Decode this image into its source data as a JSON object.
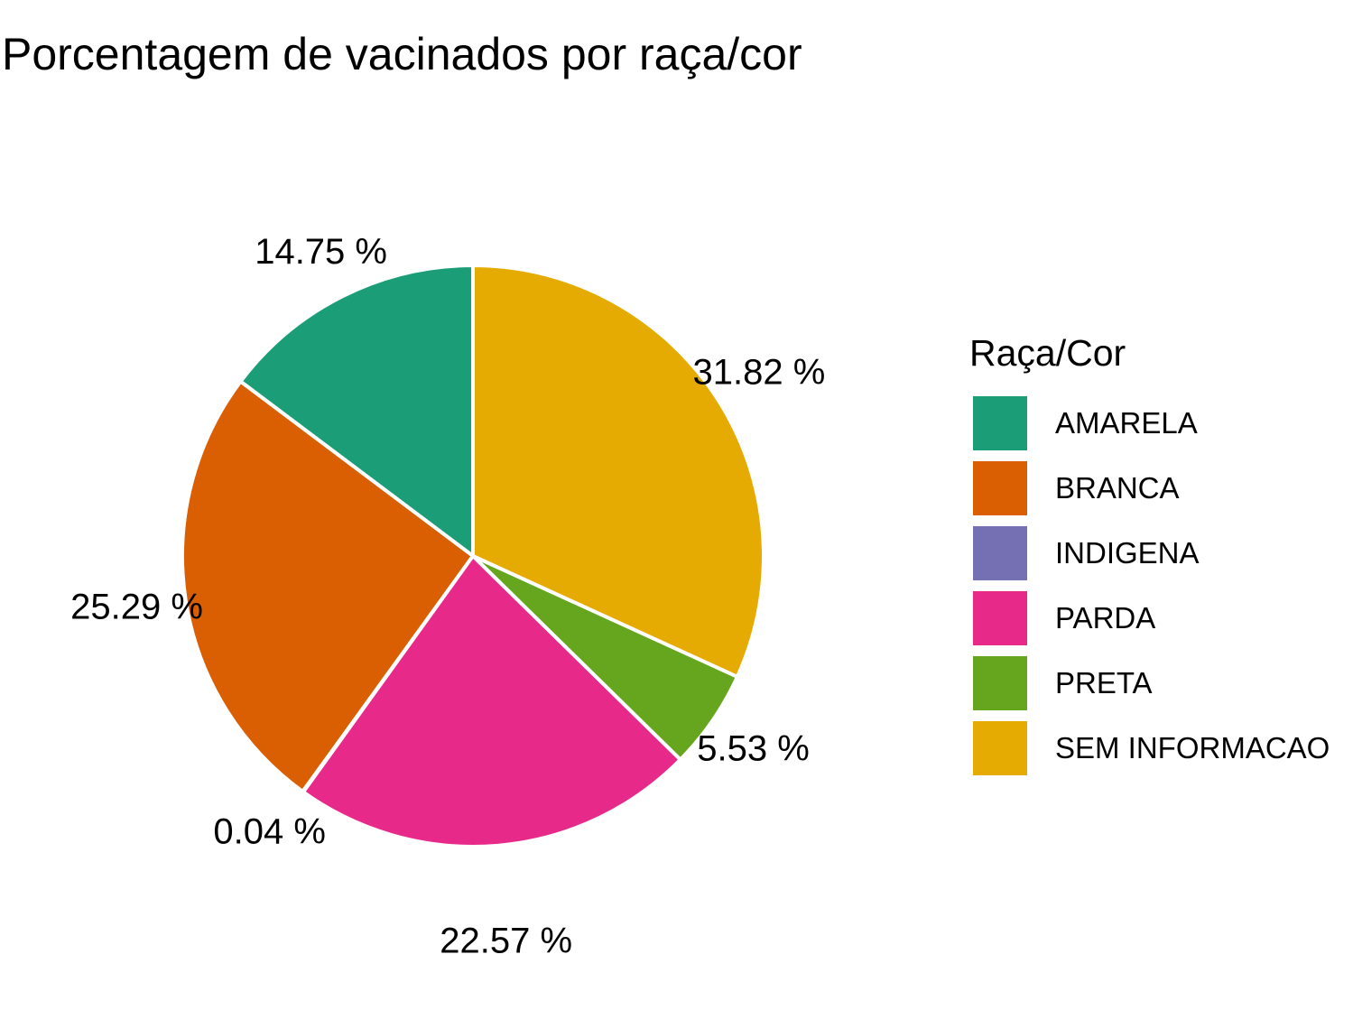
{
  "chart_data": {
    "type": "pie",
    "title": "Porcentagem de vacinados por raça/cor",
    "legend_title": "Raça/Cor",
    "legend_position": "right",
    "start": "top",
    "direction": "counterclockwise",
    "slices": [
      {
        "name": "AMARELA",
        "value": 14.75,
        "label": "14.75 %",
        "color": "#1b9e77"
      },
      {
        "name": "BRANCA",
        "value": 25.29,
        "label": "25.29 %",
        "color": "#d95f02"
      },
      {
        "name": "INDIGENA",
        "value": 0.04,
        "label": "0.04 %",
        "color": "#7570b3"
      },
      {
        "name": "PARDA",
        "value": 22.57,
        "label": "22.57 %",
        "color": "#e7298a"
      },
      {
        "name": "PRETA",
        "value": 5.53,
        "label": "5.53 %",
        "color": "#66a61e"
      },
      {
        "name": "SEM INFORMACAO",
        "value": 31.82,
        "label": "31.82 %",
        "color": "#e6ab02"
      }
    ]
  }
}
